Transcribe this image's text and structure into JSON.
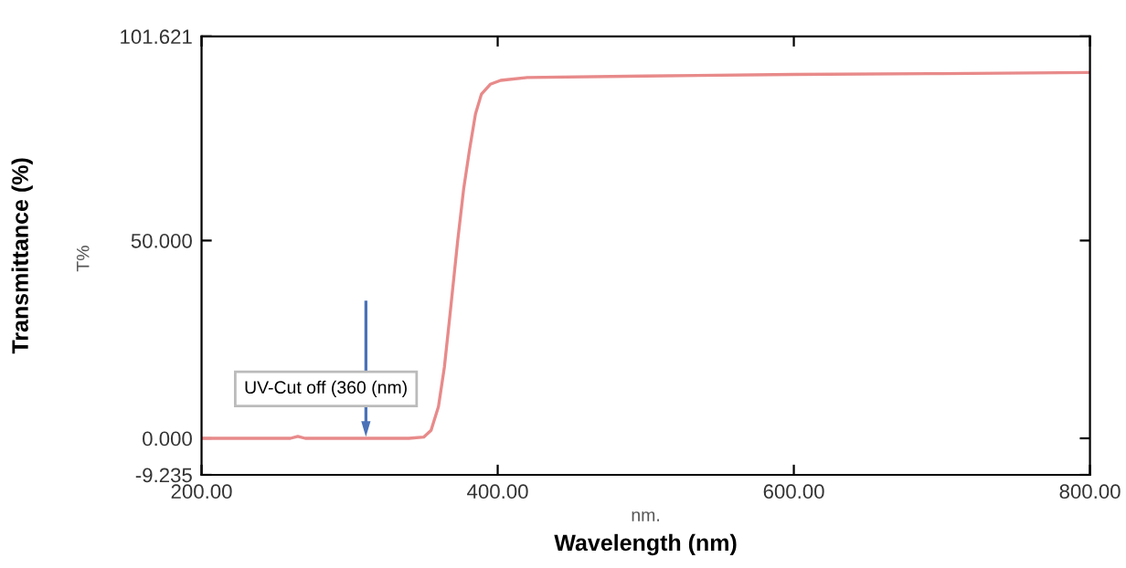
{
  "chart_data": {
    "type": "line",
    "xlabel": "Wavelength (nm)",
    "ylabel": "Transmittance (%)",
    "x": [
      200,
      260,
      265,
      270,
      340,
      350,
      355,
      360,
      364,
      368,
      373,
      377,
      381,
      385,
      389,
      395,
      402,
      420,
      500,
      600,
      700,
      800
    ],
    "series": [
      {
        "color": "#e88a8a",
        "values": [
          0,
          0,
          0.5,
          0,
          0,
          0.3,
          2,
          8,
          18,
          32,
          50,
          63,
          73,
          82,
          87,
          89.5,
          90.5,
          91.2,
          91.6,
          92,
          92.2,
          92.5
        ]
      }
    ],
    "xlim": [
      200,
      800
    ],
    "xticks": [
      {
        "value": 200,
        "label": "200.00"
      },
      {
        "value": 400,
        "label": "400.00"
      },
      {
        "value": 600,
        "label": "600.00"
      },
      {
        "value": 800,
        "label": "800.00"
      }
    ],
    "ylim": [
      -9.235,
      101.621
    ],
    "yticks": [
      {
        "value": -9.235,
        "label": "-9.235"
      },
      {
        "value": 0,
        "label": "0.000"
      },
      {
        "value": 50,
        "label": "50.000"
      },
      {
        "value": 101.621,
        "label": "101.621"
      }
    ],
    "annotations": [
      "UV-Cut off (360 (nm)",
      "T%",
      "nm."
    ],
    "grid": false,
    "legend": false,
    "marker": "none",
    "line_style": "solid"
  }
}
